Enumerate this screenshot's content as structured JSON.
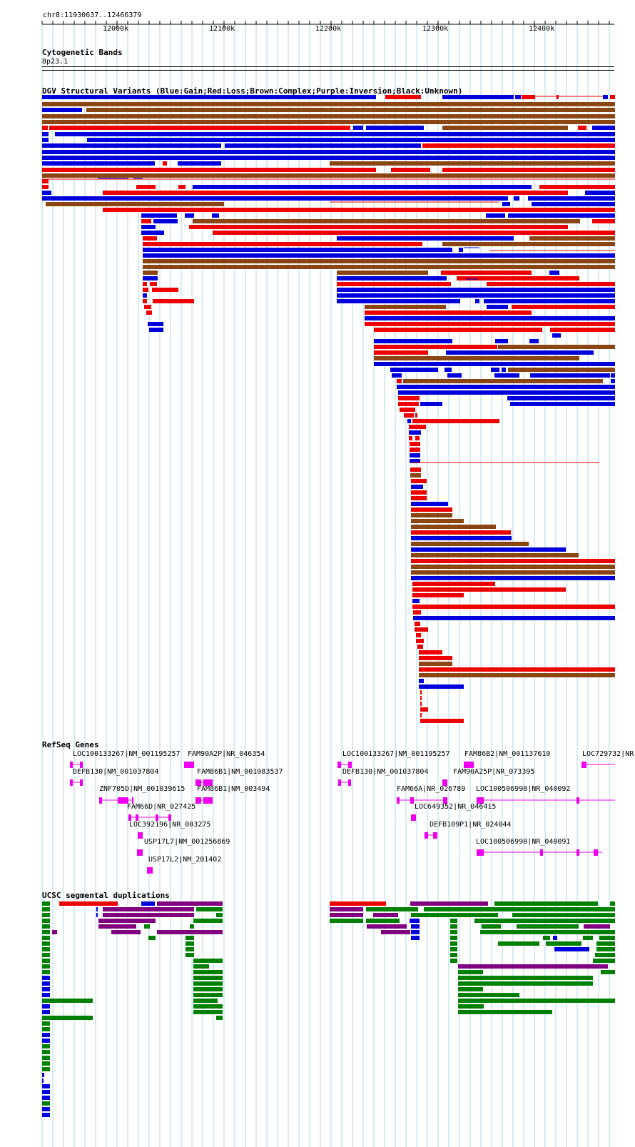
{
  "header": {
    "coordinates": "chr8:11930637..12466379"
  },
  "ruler": {
    "ticks": [
      "12000k",
      "12100k",
      "12200k",
      "12300k",
      "12400k"
    ]
  },
  "tracks": {
    "cytoband": {
      "title": "Cytogenetic Bands",
      "band": "8p23.1"
    },
    "dgv": {
      "title": "DGV Structural Variants (Blue:Gain;Red:Loss;Brown:Complex;Purple:Inversion;Black:Unknown)"
    },
    "refseq": {
      "title": "RefSeq Genes",
      "genes": [
        "LOC100133267|NM_001195257",
        "FAM90A2P|NR_046354",
        "DEFB130|NM_001037804",
        "FAM86B1|NM_001083537",
        "ZNF705D|NM_001039615",
        "FAM86B1|NM_003494",
        "FAM66D|NR_027425",
        "LOC392196|NR_003275",
        "USP17L7|NM_001256869",
        "USP17L2|NM_201402",
        "LOC100133267|NM_001195257",
        "FAM86B2|NM_001137610",
        "LOC729732|NR",
        "DEFB130|NM_001037804",
        "FAM90A25P|NR_073395",
        "FAM66A|NR_026789",
        "LOC100506990|NR_040092",
        "LOC649352|NR_046415",
        "DEFB109P1|NR_024044",
        "LOC100506990|NR_040091"
      ]
    },
    "segdup": {
      "title": "UCSC segmental duplications"
    }
  },
  "colors": {
    "gain": "#0000dd",
    "loss": "#ee0000",
    "complex": "#8b4513",
    "inversion": "#800080",
    "gene": "#ee00ee",
    "segdup_green": "#008000",
    "segdup_purple": "#800080",
    "segdup_red": "#ee0000",
    "segdup_blue": "#0000dd",
    "grid": "#add8e6"
  }
}
